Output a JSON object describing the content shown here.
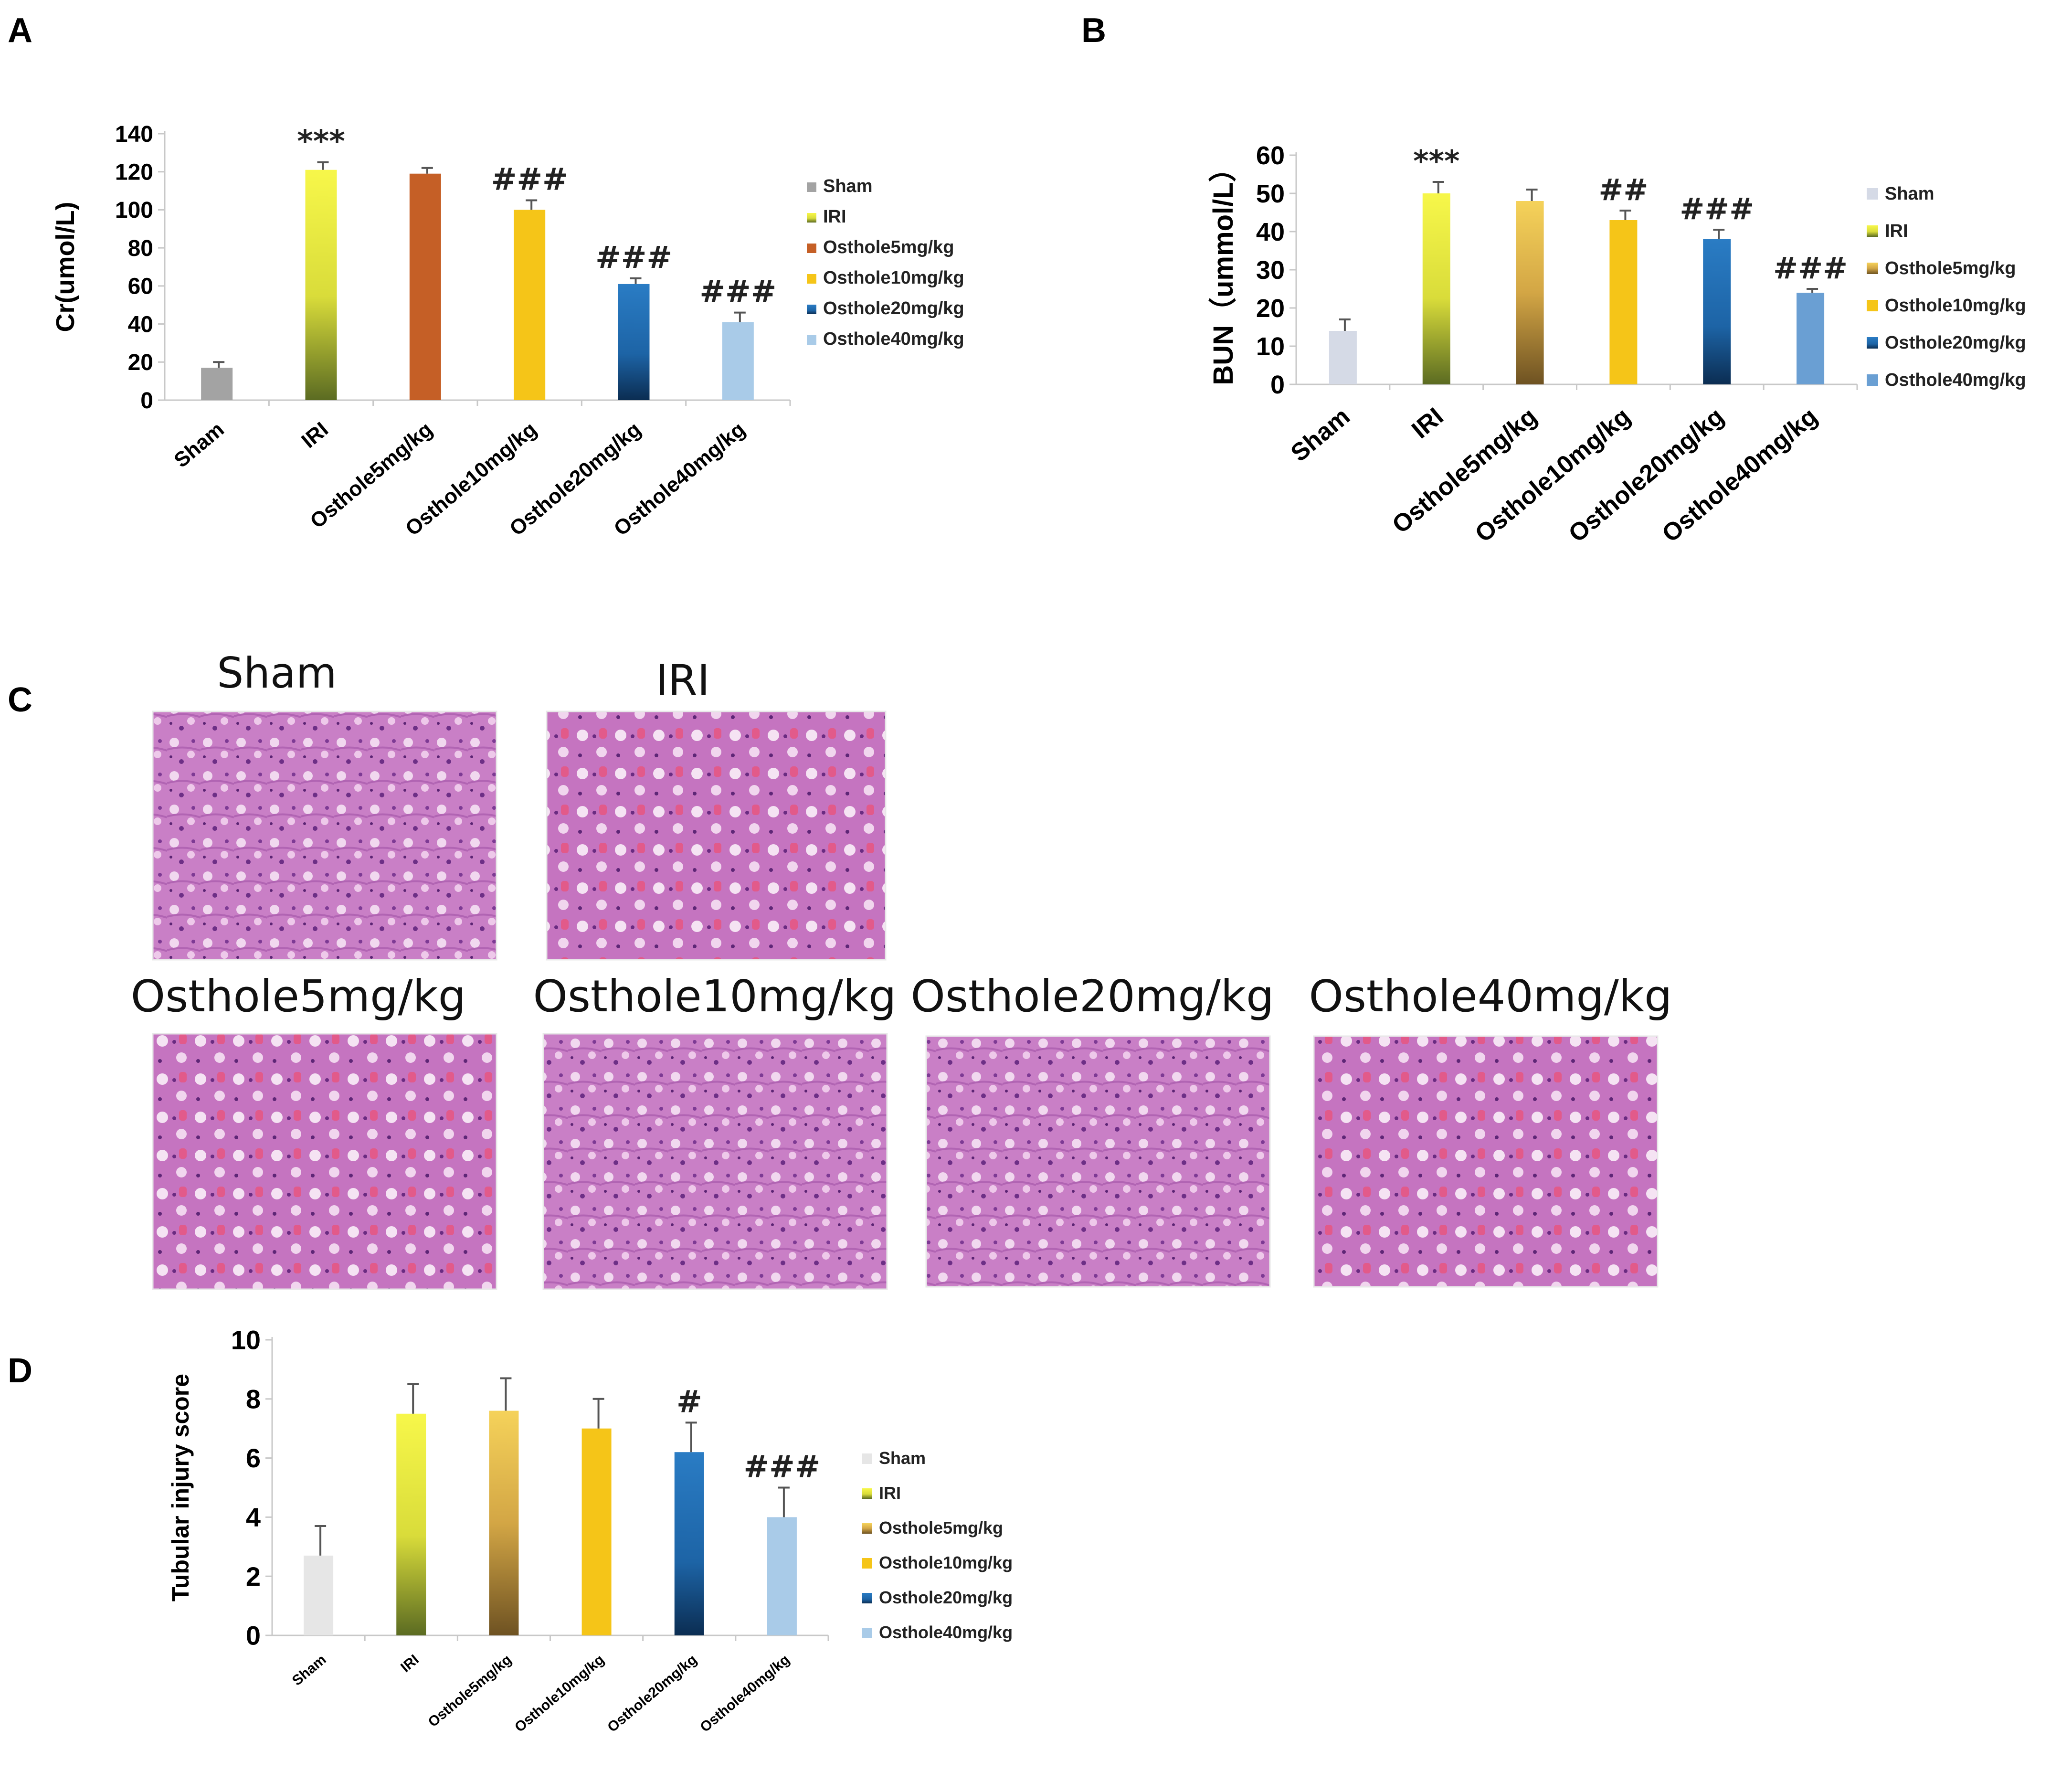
{
  "panels": {
    "A": "A",
    "B": "B",
    "C": "C",
    "D": "D"
  },
  "chart_data": [
    {
      "panel": "A",
      "type": "bar",
      "categories": [
        "Sham",
        "IRI",
        "Osthole5mg/kg",
        "Osthole10mg/kg",
        "Osthole20mg/kg",
        "Osthole40mg/kg"
      ],
      "values": [
        17,
        121,
        119,
        100,
        61,
        41
      ],
      "errors": [
        3,
        4,
        3,
        5,
        3,
        5
      ],
      "annotations": [
        "",
        "***",
        "",
        "###",
        "###",
        "###"
      ],
      "colors": [
        "#a3a3a3",
        "#e8e63a",
        "#c55f26",
        "#f5c518",
        "#1f6fb5",
        "#a9cbe8"
      ],
      "legend": [
        "Sham",
        "IRI",
        "Osthole5mg/kg",
        "Osthole10mg/kg",
        "Osthole20mg/kg",
        "Osthole40mg/kg"
      ],
      "ylabel": "Cr(umol/L)",
      "ylim": [
        0,
        140
      ],
      "yticks": [
        "0",
        "20",
        "40",
        "60",
        "80",
        "100",
        "120",
        "140"
      ]
    },
    {
      "panel": "B",
      "type": "bar",
      "categories": [
        "Sham",
        "IRI",
        "Osthole5mg/kg",
        "Osthole10mg/kg",
        "Osthole20mg/kg",
        "Osthole40mg/kg"
      ],
      "values": [
        14,
        50,
        48,
        43,
        38,
        24
      ],
      "errors": [
        3,
        3,
        3,
        2.5,
        2.5,
        1
      ],
      "annotations": [
        "",
        "***",
        "",
        "##",
        "###",
        "###"
      ],
      "colors": [
        "#d5dae6",
        "#e8e63a",
        "#c9a64a",
        "#f5c518",
        "#1f6fb5",
        "#6a9fd3"
      ],
      "legend": [
        "Sham",
        "IRI",
        "Osthole5mg/kg",
        "Osthole10mg/kg",
        "Osthole20mg/kg",
        "Osthole40mg/kg"
      ],
      "ylabel": "BUN（ummol/L）",
      "ylim": [
        0,
        60
      ],
      "yticks": [
        "0",
        "10",
        "20",
        "30",
        "40",
        "50",
        "60"
      ]
    },
    {
      "panel": "D",
      "type": "bar",
      "categories": [
        "Sham",
        "IRI",
        "Osthole5mg/kg",
        "Osthole10mg/kg",
        "Osthole20mg/kg",
        "Osthole40mg/kg"
      ],
      "values": [
        2.7,
        7.5,
        7.6,
        7.0,
        6.2,
        4.0
      ],
      "errors": [
        1.0,
        1.0,
        1.1,
        1.0,
        1.0,
        1.0
      ],
      "annotations": [
        "",
        "",
        "",
        "",
        "#",
        "###"
      ],
      "colors": [
        "#e6e6e6",
        "#e8e63a",
        "#c9a64a",
        "#f5c518",
        "#1f6fb5",
        "#a9cbe8"
      ],
      "legend": [
        "Sham",
        "IRI",
        "Osthole5mg/kg",
        "Osthole10mg/kg",
        "Osthole20mg/kg",
        "Osthole40mg/kg"
      ],
      "ylabel": "Tubular injury score",
      "ylim": [
        0,
        10
      ],
      "yticks": [
        "0",
        "2",
        "4",
        "6",
        "8",
        "10"
      ]
    }
  ],
  "histology": {
    "images": [
      {
        "label": "Sham"
      },
      {
        "label": "IRI"
      },
      {
        "label": "Osthole5mg/kg"
      },
      {
        "label": "Osthole10mg/kg"
      },
      {
        "label": "Osthole20mg/kg"
      },
      {
        "label": "Osthole40mg/kg"
      }
    ]
  }
}
